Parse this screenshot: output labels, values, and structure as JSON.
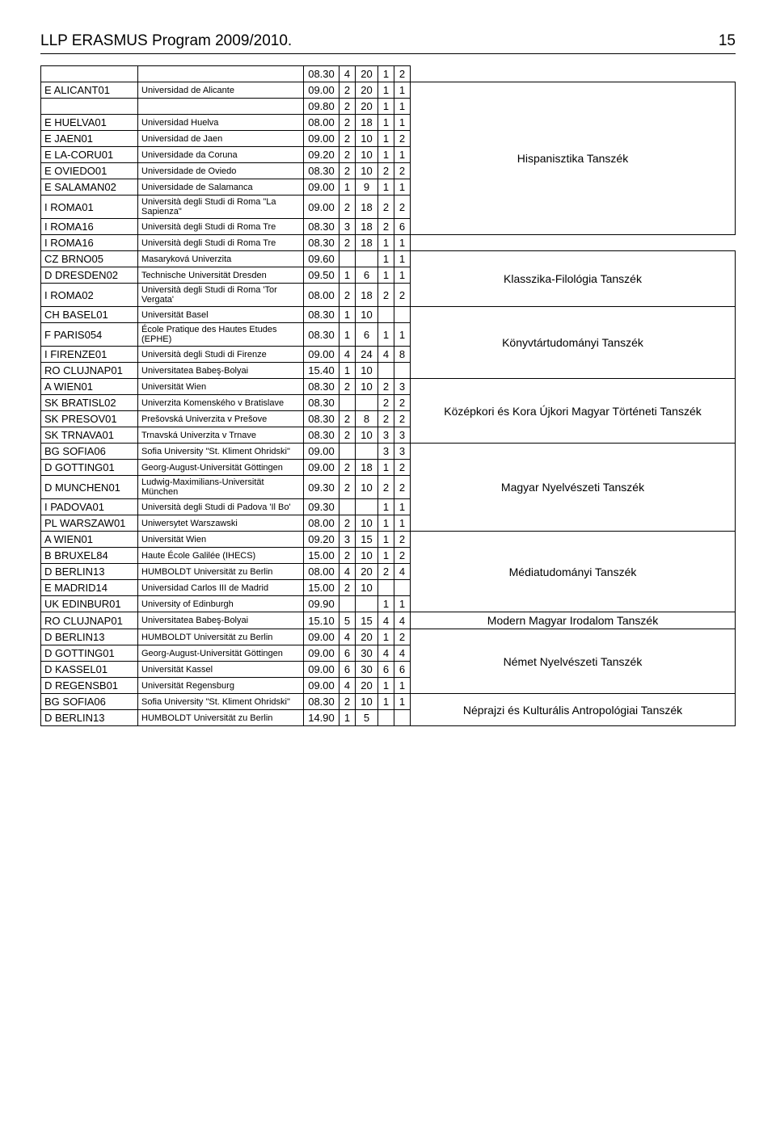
{
  "header": {
    "title": "LLP ERASMUS Program 2009/2010.",
    "page": "15"
  },
  "rows": [
    {
      "code": "",
      "inst": "",
      "n": [
        "08.30",
        "4",
        "20",
        "1",
        "2"
      ],
      "d": null,
      "ds": 0
    },
    {
      "code": "E ALICANT01",
      "inst": "Universidad de Alicante",
      "n": [
        "09.00",
        "2",
        "20",
        "1",
        "1"
      ],
      "d": "Hispanisztika Tanszék",
      "ds": 9
    },
    {
      "code": "",
      "inst": "",
      "n": [
        "09.80",
        "2",
        "20",
        "1",
        "1"
      ],
      "d": null,
      "ds": 0
    },
    {
      "code": "E HUELVA01",
      "inst": "Universidad Huelva",
      "n": [
        "08.00",
        "2",
        "18",
        "1",
        "1"
      ],
      "d": null,
      "ds": 0
    },
    {
      "code": "E JAEN01",
      "inst": "Universidad de Jaen",
      "n": [
        "09.00",
        "2",
        "10",
        "1",
        "2"
      ],
      "d": null,
      "ds": 0
    },
    {
      "code": "E LA-CORU01",
      "inst": "Universidade da Coruna",
      "n": [
        "09.20",
        "2",
        "10",
        "1",
        "1"
      ],
      "d": null,
      "ds": 0
    },
    {
      "code": "E OVIEDO01",
      "inst": "Universidade de Oviedo",
      "n": [
        "08.30",
        "2",
        "10",
        "2",
        "2"
      ],
      "d": null,
      "ds": 0
    },
    {
      "code": "E SALAMAN02",
      "inst": "Universidade de Salamanca",
      "n": [
        "09.00",
        "1",
        "9",
        "1",
        "1"
      ],
      "d": null,
      "ds": 0
    },
    {
      "code": "I ROMA01",
      "inst": "Università degli Studi di Roma \"La Sapienza\"",
      "n": [
        "09.00",
        "2",
        "18",
        "2",
        "2"
      ],
      "d": null,
      "ds": 0
    },
    {
      "code": "I ROMA16",
      "inst": "Università degli Studi di Roma Tre",
      "n": [
        "08.30",
        "3",
        "18",
        "2",
        "6"
      ],
      "d": null,
      "ds": 0
    },
    {
      "code": "I ROMA16",
      "inst": "Università degli Studi di Roma Tre",
      "n": [
        "08.30",
        "2",
        "18",
        "1",
        "1"
      ],
      "d": "",
      "ds": 1,
      "emptyDept": true
    },
    {
      "code": "CZ BRNO05",
      "inst": "Masaryková Univerzita",
      "n": [
        "09.60",
        "",
        "",
        "1",
        "1"
      ],
      "d": "Klasszika-Filológia Tanszék",
      "ds": 3
    },
    {
      "code": "D DRESDEN02",
      "inst": "Technische Universität Dresden",
      "n": [
        "09.50",
        "1",
        "6",
        "1",
        "1"
      ],
      "d": null,
      "ds": 0
    },
    {
      "code": "I ROMA02",
      "inst": "Università degli Studi di Roma 'Tor Vergata'",
      "n": [
        "08.00",
        "2",
        "18",
        "2",
        "2"
      ],
      "d": null,
      "ds": 0
    },
    {
      "code": "CH BASEL01",
      "inst": "Universität Basel",
      "n": [
        "08.30",
        "1",
        "10",
        "",
        ""
      ],
      "d": "Könyvtártudományi Tanszék",
      "ds": 4
    },
    {
      "code": "F PARIS054",
      "inst": "École Pratique des Hautes Etudes (EPHE)",
      "n": [
        "08.30",
        "1",
        "6",
        "1",
        "1"
      ],
      "d": null,
      "ds": 0
    },
    {
      "code": "I FIRENZE01",
      "inst": "Università degli Studi di Firenze",
      "n": [
        "09.00",
        "4",
        "24",
        "4",
        "8"
      ],
      "d": null,
      "ds": 0
    },
    {
      "code": "RO CLUJNAP01",
      "inst": "Universitatea Babeş-Bolyai",
      "n": [
        "15.40",
        "1",
        "10",
        "",
        ""
      ],
      "d": null,
      "ds": 0
    },
    {
      "code": "A WIEN01",
      "inst": "Universität Wien",
      "n": [
        "08.30",
        "2",
        "10",
        "2",
        "3"
      ],
      "d": "Középkori és Kora Újkori Magyar Történeti Tanszék",
      "ds": 4
    },
    {
      "code": "SK BRATISL02",
      "inst": "Univerzita Komenského v Bratislave",
      "n": [
        "08.30",
        "",
        "",
        "2",
        "2"
      ],
      "d": null,
      "ds": 0
    },
    {
      "code": "SK PRESOV01",
      "inst": "Prešovská Univerzita v Prešove",
      "n": [
        "08.30",
        "2",
        "8",
        "2",
        "2"
      ],
      "d": null,
      "ds": 0
    },
    {
      "code": "SK TRNAVA01",
      "inst": "Trnavská Univerzita v Trnave",
      "n": [
        "08.30",
        "2",
        "10",
        "3",
        "3"
      ],
      "d": null,
      "ds": 0
    },
    {
      "code": "BG SOFIA06",
      "inst": "Sofia University \"St. Kliment Ohridski\"",
      "n": [
        "09.00",
        "",
        "",
        "3",
        "3"
      ],
      "d": "Magyar Nyelvészeti Tanszék",
      "ds": 5
    },
    {
      "code": "D GOTTING01",
      "inst": "Georg-August-Universität Göttingen",
      "n": [
        "09.00",
        "2",
        "18",
        "1",
        "2"
      ],
      "d": null,
      "ds": 0
    },
    {
      "code": "D MUNCHEN01",
      "inst": "Ludwig-Maximilians-Universität München",
      "n": [
        "09.30",
        "2",
        "10",
        "2",
        "2"
      ],
      "d": null,
      "ds": 0
    },
    {
      "code": "I PADOVA01",
      "inst": "Università degli Studi di Padova 'Il Bo'",
      "n": [
        "09.30",
        "",
        "",
        "1",
        "1"
      ],
      "d": null,
      "ds": 0
    },
    {
      "code": "PL WARSZAW01",
      "inst": "Uniwersytet Warszawski",
      "n": [
        "08.00",
        "2",
        "10",
        "1",
        "1"
      ],
      "d": null,
      "ds": 0
    },
    {
      "code": "A WIEN01",
      "inst": "Universität Wien",
      "n": [
        "09.20",
        "3",
        "15",
        "1",
        "2"
      ],
      "d": "Médiatudományi Tanszék",
      "ds": 5
    },
    {
      "code": "B BRUXEL84",
      "inst": "Haute École Galilée (IHECS)",
      "n": [
        "15.00",
        "2",
        "10",
        "1",
        "2"
      ],
      "d": null,
      "ds": 0
    },
    {
      "code": "D BERLIN13",
      "inst": "HUMBOLDT Universität zu Berlin",
      "n": [
        "08.00",
        "4",
        "20",
        "2",
        "4"
      ],
      "d": null,
      "ds": 0
    },
    {
      "code": "E MADRID14",
      "inst": "Universidad Carlos III de Madrid",
      "n": [
        "15.00",
        "2",
        "10",
        "",
        ""
      ],
      "d": null,
      "ds": 0
    },
    {
      "code": "UK EDINBUR01",
      "inst": "University of Edinburgh",
      "n": [
        "09.90",
        "",
        "",
        "1",
        "1"
      ],
      "d": null,
      "ds": 0
    },
    {
      "code": "RO CLUJNAP01",
      "inst": "Universitatea Babeş-Bolyai",
      "n": [
        "15.10",
        "5",
        "15",
        "4",
        "4"
      ],
      "d": "Modern Magyar Irodalom Tanszék",
      "ds": 1
    },
    {
      "code": "D BERLIN13",
      "inst": "HUMBOLDT Universität zu Berlin",
      "n": [
        "09.00",
        "4",
        "20",
        "1",
        "2"
      ],
      "d": "Német Nyelvészeti Tanszék",
      "ds": 4
    },
    {
      "code": "D GOTTING01",
      "inst": "Georg-August-Universität Göttingen",
      "n": [
        "09.00",
        "6",
        "30",
        "4",
        "4"
      ],
      "d": null,
      "ds": 0
    },
    {
      "code": "D KASSEL01",
      "inst": "Universität Kassel",
      "n": [
        "09.00",
        "6",
        "30",
        "6",
        "6"
      ],
      "d": null,
      "ds": 0
    },
    {
      "code": "D REGENSB01",
      "inst": "Universität Regensburg",
      "n": [
        "09.00",
        "4",
        "20",
        "1",
        "1"
      ],
      "d": null,
      "ds": 0
    },
    {
      "code": "BG SOFIA06",
      "inst": "Sofia University \"St. Kliment Ohridski\"",
      "n": [
        "08.30",
        "2",
        "10",
        "1",
        "1"
      ],
      "d": "Néprajzi és Kulturális Antropológiai Tanszék",
      "ds": 2
    },
    {
      "code": "D BERLIN13",
      "inst": "HUMBOLDT Universität zu Berlin",
      "n": [
        "14.90",
        "1",
        "5",
        "",
        ""
      ],
      "d": null,
      "ds": 0
    }
  ],
  "colors": {
    "text": "#000000",
    "bg": "#ffffff",
    "border": "#000000"
  }
}
